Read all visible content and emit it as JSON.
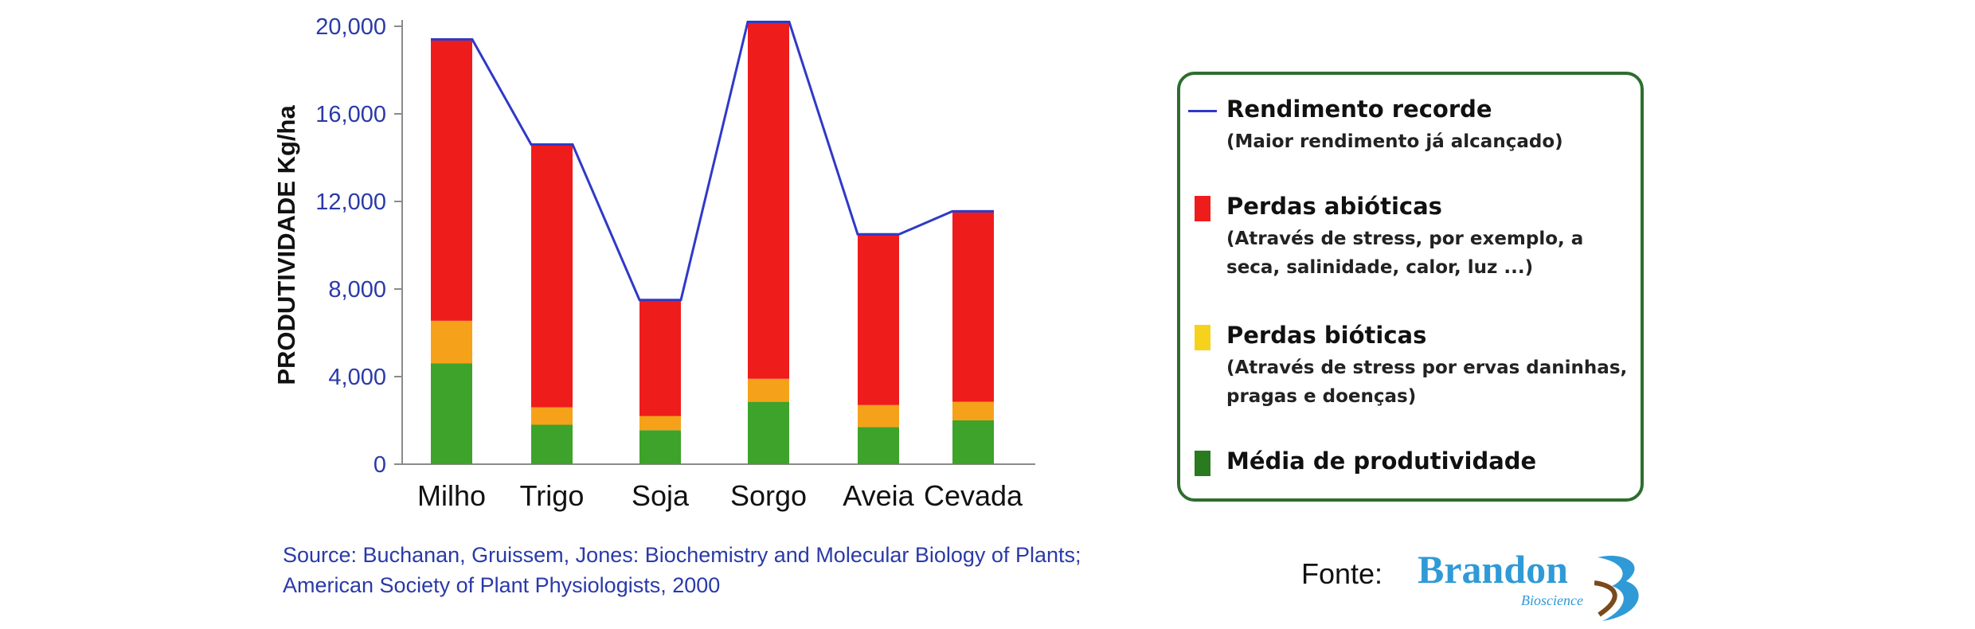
{
  "chart_data": {
    "type": "bar",
    "stacked": true,
    "categories": [
      "Milho",
      "Trigo",
      "Soja",
      "Sorgo",
      "Aveia",
      "Cevada"
    ],
    "series": [
      {
        "name": "Média de produtividade",
        "color": "#3da32a",
        "values": [
          4600,
          1800,
          1550,
          2850,
          1700,
          2000
        ]
      },
      {
        "name": "Perdas bióticas",
        "color": "#f5a21a",
        "values": [
          1950,
          800,
          650,
          1050,
          1000,
          850
        ]
      },
      {
        "name": "Perdas abióticas",
        "color": "#ef1c1c",
        "values": [
          12850,
          12000,
          5300,
          16300,
          7800,
          8700
        ]
      }
    ],
    "line": {
      "name": "Rendimento recorde",
      "color": "#2f39c8",
      "values": [
        19400,
        14600,
        7500,
        20200,
        10500,
        11550
      ]
    },
    "ylabel": "PRODUTIVIDADE Kg/ha",
    "ylim": [
      0,
      20000
    ],
    "yticks": [
      "0",
      "4,000",
      "8,000",
      "12,000",
      "16,000",
      "20,000"
    ],
    "ytick_values": [
      0,
      4000,
      8000,
      12000,
      16000,
      20000
    ],
    "grid": false
  },
  "legend": {
    "items": [
      {
        "title": "Rendimento recorde",
        "desc": "(Maior rendimento já alcançado)",
        "kind": "line",
        "color": "#2f39c8"
      },
      {
        "title": "Perdas abióticas",
        "desc": "(Através de stress, por exemplo, a seca, salinidade, calor, luz ...)",
        "kind": "box",
        "color": "#ef1c1c"
      },
      {
        "title": "Perdas bióticas",
        "desc": "(Através de stress por ervas daninhas, pragas e doenças)",
        "kind": "box",
        "color": "#f7d21c"
      },
      {
        "title": "Média de produtividade",
        "desc": "",
        "kind": "box",
        "color": "#2a7a1f"
      }
    ]
  },
  "source": {
    "line1": "Source: Buchanan, Gruissem, Jones: Biochemistry and Molecular Biology of Plants;",
    "line2": "American Society of Plant Physiologists, 2000"
  },
  "fonte_label": "Fonte:",
  "logo": {
    "text": "Brandon",
    "sub": "Bioscience"
  }
}
